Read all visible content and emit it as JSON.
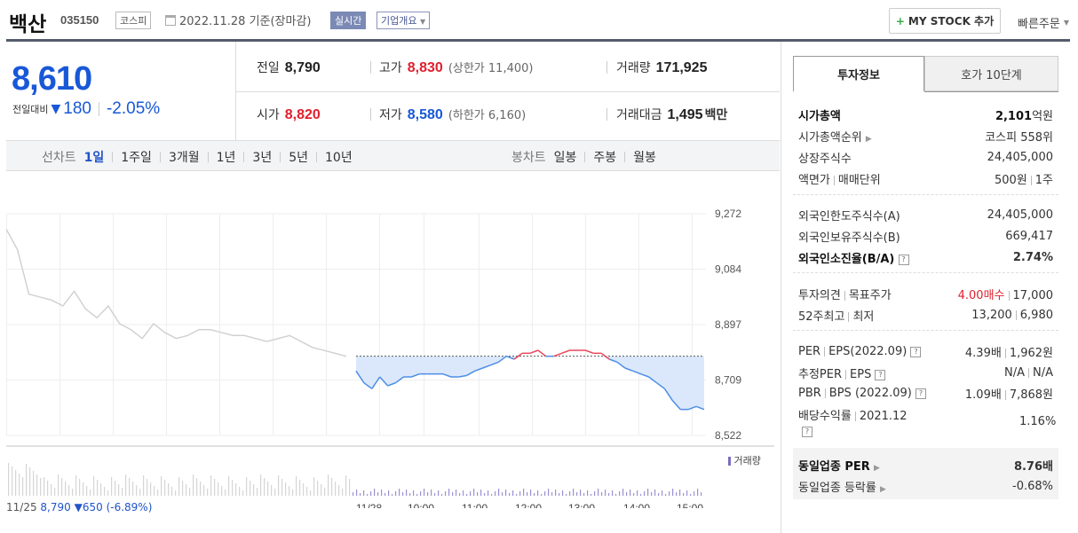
{
  "header": {
    "name": "백산",
    "code": "035150",
    "market": "코스피",
    "date": "2022.11.28 기준(장마감)",
    "realtime": "실시간",
    "company_info": "기업개요",
    "mystock": "MY STOCK 추가",
    "quick_order": "빠른주문"
  },
  "price": {
    "current": "8,610",
    "change_label": "전일대비",
    "change": "180",
    "change_pct": "-2.05%"
  },
  "quote": {
    "prev_label": "전일",
    "prev": "8,790",
    "high_label": "고가",
    "high": "8,830",
    "upper_label": "(상한가",
    "upper": "11,400",
    "upper_close": ")",
    "volume_label": "거래량",
    "volume": "171,925",
    "open_label": "시가",
    "open": "8,820",
    "low_label": "저가",
    "low": "8,580",
    "lower_label": "(하한가",
    "lower": "6,160",
    "lower_close": ")",
    "amount_label": "거래대금",
    "amount": "1,495",
    "amount_unit": "백만"
  },
  "period_bar": {
    "line_label": "선차트",
    "line_items": [
      "1일",
      "1주일",
      "3개월",
      "1년",
      "3년",
      "5년",
      "10년"
    ],
    "active": "1일",
    "candle_label": "봉차트",
    "candle_items": [
      "일봉",
      "주봉",
      "월봉"
    ]
  },
  "chart_data": {
    "type": "line",
    "y_ticks": [
      "9,272",
      "9,084",
      "8,897",
      "8,709",
      "8,522"
    ],
    "ylim": [
      8522,
      9272
    ],
    "x_ticks": [
      "11/25",
      "11/28",
      "10:00",
      "11:00",
      "12:00",
      "13:00",
      "14:00",
      "15:00"
    ],
    "reference_price": 8790,
    "volume_legend": "거래량",
    "series": [
      {
        "name": "11/25",
        "values": [
          9220,
          9150,
          9000,
          8990,
          8980,
          8960,
          9010,
          8950,
          8920,
          8960,
          8900,
          8880,
          8850,
          8900,
          8870,
          8850,
          8860,
          8880,
          8880,
          8870,
          8860,
          8860,
          8850,
          8840,
          8850,
          8860,
          8840,
          8820,
          8810,
          8800,
          8790
        ]
      },
      {
        "name": "11/28",
        "values": [
          8740,
          8700,
          8680,
          8720,
          8690,
          8700,
          8720,
          8720,
          8730,
          8730,
          8730,
          8730,
          8720,
          8720,
          8725,
          8740,
          8750,
          8760,
          8770,
          8790,
          8780,
          8800,
          8800,
          8810,
          8790,
          8790,
          8800,
          8810,
          8810,
          8810,
          8800,
          8800,
          8780,
          8770,
          8750,
          8740,
          8730,
          8720,
          8700,
          8680,
          8640,
          8610,
          8610,
          8620,
          8610
        ]
      }
    ]
  },
  "prev_day_info": {
    "date": "11/25",
    "price": "8,790",
    "arrow": "▼",
    "change": "650",
    "pct": "(-6.89%)"
  },
  "right_panel": {
    "tab_invest": "투자정보",
    "tab_hoga": "호가 10단계",
    "market_cap_label": "시가총액",
    "market_cap": "2,101",
    "market_cap_unit": "억원",
    "cap_rank_label": "시가총액순위",
    "cap_rank": "코스피 558위",
    "shares_label": "상장주식수",
    "shares": "24,405,000",
    "par_label": "액면가",
    "unit_label": "매매단위",
    "par": "500원",
    "unit": "1주",
    "foreign_limit_label": "외국인한도주식수(A)",
    "foreign_limit": "24,405,000",
    "foreign_hold_label": "외국인보유주식수(B)",
    "foreign_hold": "669,417",
    "foreign_ratio_label": "외국인소진율(B/A)",
    "foreign_ratio": "2.74%",
    "opinion_label": "투자의견",
    "target_label": "목표주가",
    "opinion": "4.00매수",
    "target": "17,000",
    "w52_high_label": "52주최고",
    "w52_low_label": "최저",
    "w52_high": "13,200",
    "w52_low": "6,980",
    "per_label": "PER",
    "eps_label": "EPS(2022.09)",
    "per": "4.39배",
    "eps": "1,962원",
    "est_per_label": "추정PER",
    "est_eps_label": "EPS",
    "est_per": "N/A",
    "est_eps": "N/A",
    "pbr_label": "PBR",
    "bps_label": "BPS (2022.09)",
    "pbr": "1.09배",
    "bps": "7,868원",
    "div_label": "배당수익률",
    "div_date": "2021.12",
    "div": "1.16%",
    "peer_per_label": "동일업종 PER",
    "peer_per": "8.76배",
    "peer_chg_label": "동일업종 등락률",
    "peer_chg": "-0.68%"
  }
}
